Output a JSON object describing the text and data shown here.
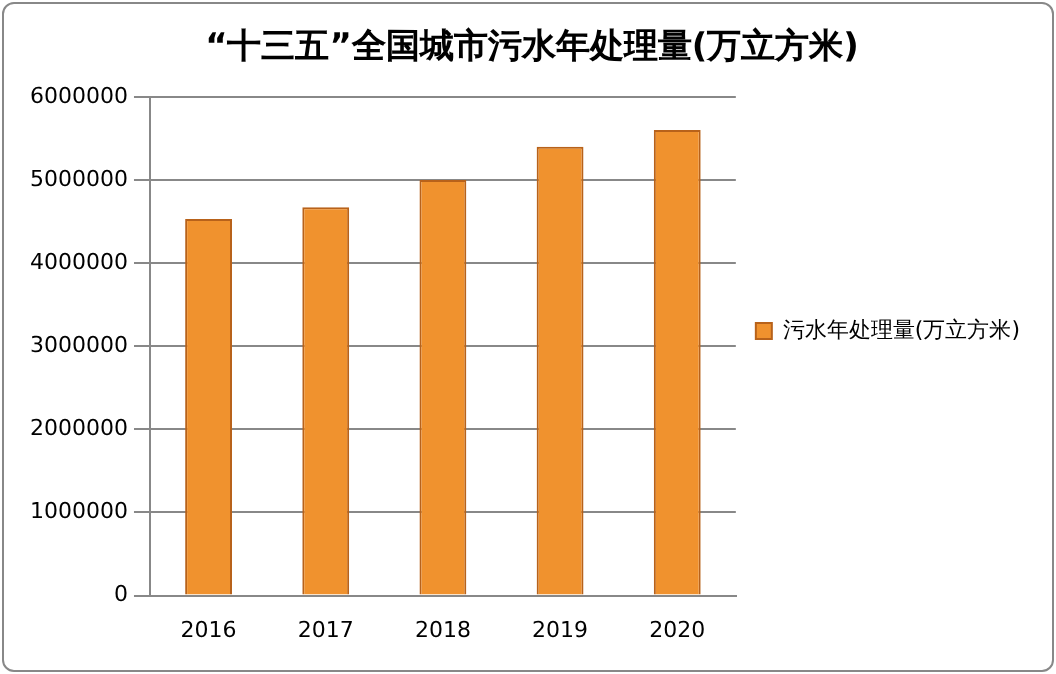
{
  "chart_data": {
    "type": "bar",
    "title": "“十三五”全国城市污水年处理量(万立方米)",
    "categories": [
      "2016",
      "2017",
      "2018",
      "2019",
      "2020"
    ],
    "series": [
      {
        "name": "污水年处理量(万立方米)",
        "color": "#f0922e",
        "values": [
          4530000,
          4670000,
          5000000,
          5400000,
          5600000
        ]
      }
    ],
    "ylim": [
      0,
      6000000
    ],
    "yticks": [
      0,
      1000000,
      2000000,
      3000000,
      4000000,
      5000000,
      6000000
    ],
    "grid": "y",
    "legend": "right"
  }
}
